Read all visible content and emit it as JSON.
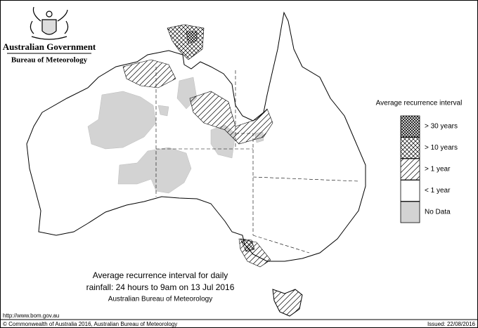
{
  "header": {
    "title": "Australian Government",
    "subtitle": "Bureau of Meteorology"
  },
  "legend": {
    "title": "Average recurrence interval",
    "items": [
      {
        "label": "> 30 years"
      },
      {
        "label": "> 10 years"
      },
      {
        "label": "> 1 year"
      },
      {
        "label": "< 1 year"
      },
      {
        "label": "No Data"
      }
    ]
  },
  "caption": {
    "line1": "Average recurrence interval for daily",
    "line2": "rainfall: 24 hours to 9am on 13 Jul 2016",
    "line3": "Australian Bureau of Meteorology"
  },
  "footer": {
    "url": "http://www.bom.gov.au",
    "copyright": "© Commonwealth of Australia 2016, Australian Bureau of Meteorology",
    "issued": "Issued: 22/08/2016"
  }
}
